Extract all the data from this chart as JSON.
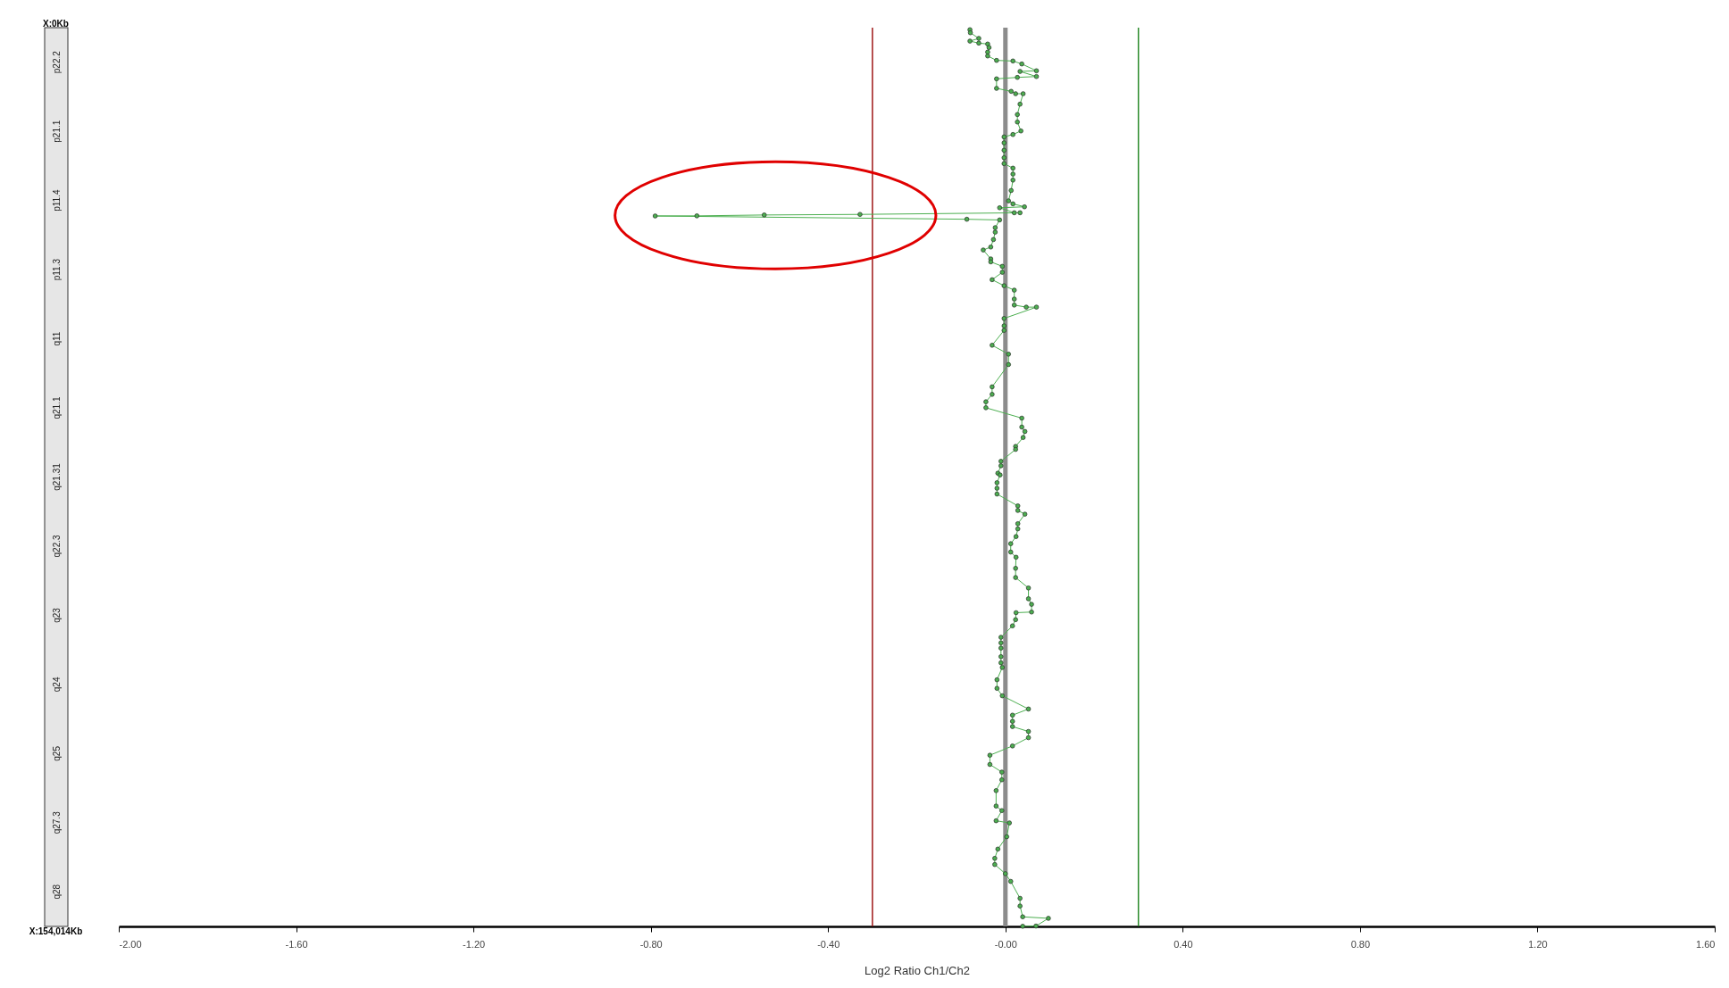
{
  "chart_data": {
    "type": "line",
    "xlabel": "Log2 Ratio Ch1/Ch2",
    "marker": "circle",
    "grid": false,
    "xlim": [
      -2,
      1.6
    ],
    "xticks": [
      {
        "value": -2,
        "label": "-2.00"
      },
      {
        "value": -1.6,
        "label": "-1.60"
      },
      {
        "value": -1.2,
        "label": "-1.20"
      },
      {
        "value": -0.8,
        "label": "-0.80"
      },
      {
        "value": -0.4,
        "label": "-0.40"
      },
      {
        "value": 0,
        "label": "-0.00"
      },
      {
        "value": 0.4,
        "label": "0.40"
      },
      {
        "value": 0.8,
        "label": "0.80"
      },
      {
        "value": 1.2,
        "label": "1.20"
      },
      {
        "value": 1.6,
        "label": "1.60"
      }
    ],
    "ylim": [
      154014,
      0
    ],
    "yticks": [
      {
        "value": 0,
        "label": "X:0Kb"
      },
      {
        "value": 154014,
        "label": "X:154,014Kb"
      }
    ],
    "ref_lines": [
      {
        "axis": "x",
        "value": -0.3,
        "color": "#a01818"
      },
      {
        "axis": "x",
        "value": 0.3,
        "color": "#2a8a2a"
      },
      {
        "axis": "x",
        "value": 0,
        "color": "#8c8c8c"
      }
    ],
    "annotations": [
      "p22.2",
      "p21.1",
      "p11.4",
      "p11.3",
      "q11",
      "q21.1",
      "q21.31",
      "q22.3",
      "q23",
      "q24",
      "q25",
      "q27.3",
      "q28"
    ],
    "series": [
      {
        "color": "#4caf50",
        "x": [
          -0.08,
          -0.079,
          -0.06,
          -0.08,
          -0.06,
          -0.04,
          -0.037,
          -0.04,
          -0.04,
          -0.02,
          0.017,
          0.037,
          0.07,
          0.033,
          0.07,
          0.027,
          -0.02,
          -0.02,
          0.013,
          0.023,
          0.04,
          0.033,
          0.027,
          0.027,
          0.035,
          0.017,
          -0.003,
          -0.003,
          -0.003,
          -0.003,
          -0.003,
          0.017,
          0.017,
          0.017,
          0.013,
          0.007,
          0.017,
          0.043,
          -0.013,
          0.02,
          0.033,
          -0.328,
          -0.544,
          -0.696,
          -0.79,
          -0.087,
          -0.013,
          -0.023,
          -0.023,
          -0.027,
          -0.033,
          -0.05,
          -0.033,
          -0.033,
          -0.007,
          -0.007,
          -0.03,
          -0.003,
          0.02,
          0.02,
          0.02,
          0.047,
          0.07,
          -0.003,
          -0.003,
          -0.003,
          -0.03,
          0.007,
          0.007,
          -0.03,
          -0.03,
          -0.044,
          -0.044,
          0.037,
          0.037,
          0.044,
          0.04,
          0.023,
          0.023,
          -0.01,
          -0.01,
          -0.017,
          -0.012,
          -0.019,
          -0.019,
          -0.019,
          0.028,
          0.028,
          0.044,
          0.028,
          0.028,
          0.024,
          0.012,
          0.012,
          0.024,
          0.023,
          0.023,
          0.052,
          0.052,
          0.059,
          0.059,
          0.024,
          0.023,
          0.016,
          -0.01,
          -0.01,
          -0.01,
          -0.01,
          -0.01,
          -0.007,
          -0.019,
          -0.019,
          -0.007,
          0.052,
          0.016,
          0.016,
          0.016,
          0.052,
          0.052,
          0.016,
          -0.035,
          -0.035,
          -0.008,
          -0.008,
          -0.021,
          -0.021,
          -0.008,
          -0.021,
          0.009,
          0.003,
          -0.017,
          -0.024,
          -0.024,
          0,
          0.012,
          0.033,
          0.033,
          0.039,
          0.097,
          0.069,
          0.039
        ],
        "values": [
          350,
          870,
          1840,
          2300,
          2650,
          2800,
          3400,
          4180,
          4850,
          5610,
          5710,
          6220,
          7390,
          7500,
          8370,
          8520,
          8770,
          10400,
          10910,
          11320,
          11320,
          13110,
          14890,
          16170,
          17700,
          18310,
          18720,
          19740,
          21010,
          22290,
          23300,
          24070,
          25090,
          26120,
          27900,
          29680,
          30190,
          30700,
          30860,
          31720,
          31720,
          32000,
          32100,
          32250,
          32270,
          32830,
          32950,
          34270,
          35040,
          36310,
          37590,
          38100,
          39630,
          40130,
          40900,
          41920,
          43190,
          44220,
          44980,
          46510,
          47540,
          47890,
          47890,
          49830,
          51100,
          51870,
          54420,
          55950,
          57730,
          61550,
          62840,
          64110,
          65130,
          66910,
          68440,
          69200,
          70230,
          71760,
          72270,
          74310,
          75080,
          76350,
          76650,
          77980,
          78930,
          79920,
          81950,
          82730,
          83370,
          85000,
          85890,
          87210,
          88430,
          89860,
          90750,
          92650,
          94230,
          96020,
          97870,
          98820,
          100140,
          100250,
          101450,
          102510,
          104470,
          105420,
          106320,
          107790,
          108840,
          109640,
          111750,
          113220,
          114490,
          116760,
          117810,
          118870,
          119770,
          120610,
          121670,
          123090,
          124680,
          126260,
          127570,
          128890,
          130740,
          133390,
          134170,
          135910,
          136280,
          138650,
          140760,
          142350,
          143410,
          144980,
          146300,
          149200,
          150520,
          152370,
          152630,
          153950,
          153990
        ]
      }
    ]
  }
}
